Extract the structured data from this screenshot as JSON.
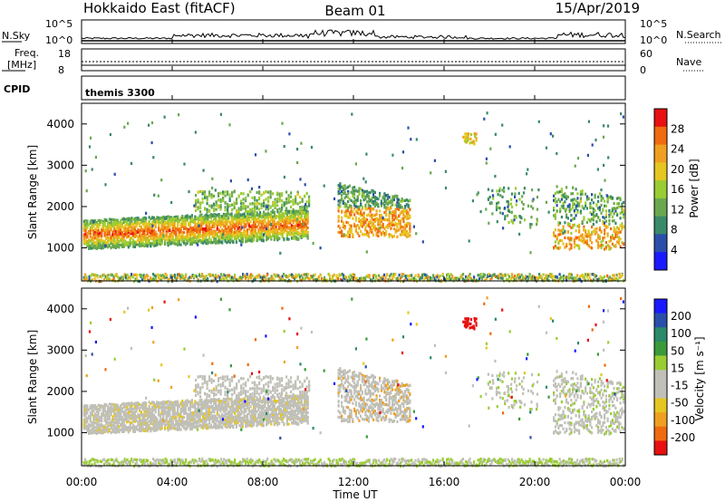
{
  "header": {
    "station": "Hokkaido East (fitACF)",
    "beam": "Beam 01",
    "date": "15/Apr/2019"
  },
  "top_panels": {
    "nsky_label": "N.Sky",
    "nsky_left_ticks": [
      "10^5",
      "10^0"
    ],
    "nsearch_label": "N.Search",
    "nsearch_right_ticks": [
      "10^5",
      "10^0"
    ],
    "freq_label_1": "Freq.",
    "freq_label_2": "[MHz]",
    "freq_ticks": [
      "18",
      "8"
    ],
    "nave_label": "Nave",
    "nave_ticks": [
      "60",
      "0"
    ],
    "cpid_label": "CPID",
    "cpid_value": "themis 3300"
  },
  "time_axis": {
    "label": "Time UT",
    "ticks": [
      "00:00",
      "04:00",
      "08:00",
      "12:00",
      "16:00",
      "20:00",
      "00:00"
    ]
  },
  "colors": {
    "power_scale": [
      "#1a1aff",
      "#2a4faa",
      "#3a8a6a",
      "#6aa84f",
      "#9acd32",
      "#e6c620",
      "#f0a020",
      "#f06a10",
      "#e81010"
    ],
    "velocity_scale": [
      "#e81010",
      "#f06a10",
      "#f0a020",
      "#e6c620",
      "#c0c0b8",
      "#c0c0b8",
      "#9acd32",
      "#3a9a3a",
      "#2a8a6a",
      "#2a4faa",
      "#1a1aff"
    ]
  },
  "chart_data": [
    {
      "type": "heatmap",
      "panel": "power",
      "ylabel": "Slant Range [km]",
      "xlabel": "",
      "yticks": [
        "1000",
        "2000",
        "3000",
        "4000"
      ],
      "ylim": [
        200,
        4500
      ],
      "xlim_hours": [
        0,
        24
      ],
      "colorbar_label": "Power [dB]",
      "colorbar_ticks": [
        "28",
        "24",
        "20",
        "16",
        "12",
        "8",
        "4"
      ],
      "colorbar_range": [
        0,
        32
      ]
    },
    {
      "type": "heatmap",
      "panel": "velocity",
      "ylabel": "Slant Range [km]",
      "xlabel": "Time UT",
      "yticks": [
        "1000",
        "2000",
        "3000",
        "4000"
      ],
      "ylim": [
        200,
        4500
      ],
      "xlim_hours": [
        0,
        24
      ],
      "colorbar_label": "Velocity [m s⁻¹]",
      "colorbar_ticks": [
        "200",
        "100",
        "50",
        "15",
        "-15",
        "-50",
        "-100",
        "-200"
      ],
      "colorbar_range": [
        -250,
        250
      ]
    }
  ]
}
